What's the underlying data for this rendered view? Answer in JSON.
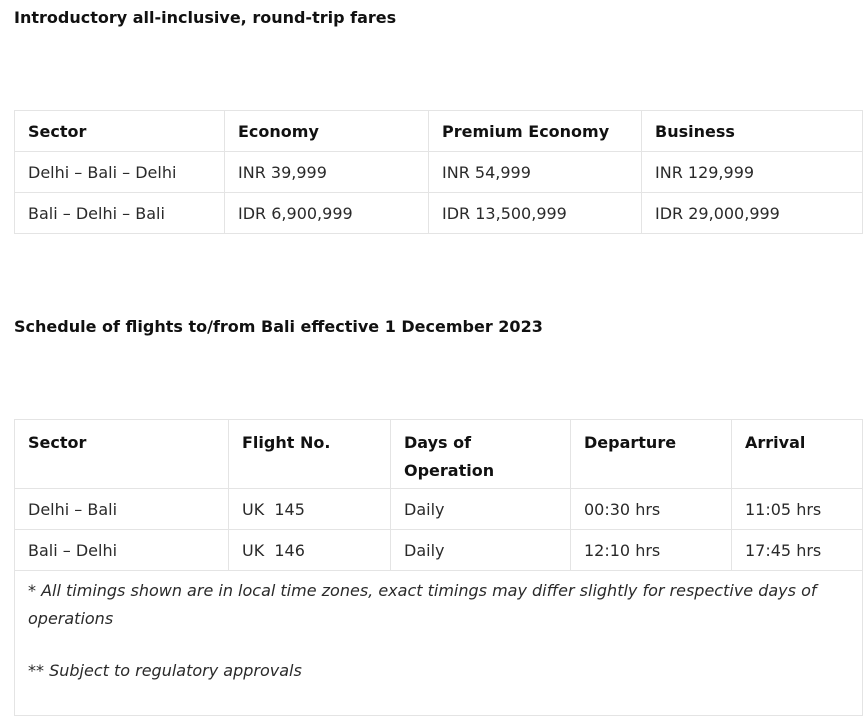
{
  "fares": {
    "heading": "Introductory all-inclusive, round-trip fares",
    "columns": [
      "Sector",
      "Economy",
      "Premium Economy",
      "Business"
    ],
    "rows": [
      [
        "Delhi – Bali – Delhi",
        "INR 39,999",
        "INR 54,999",
        "INR 129,999"
      ],
      [
        "Bali – Delhi – Bali",
        "IDR 6,900,999",
        "IDR 13,500,999",
        "IDR 29,000,999"
      ]
    ]
  },
  "schedule": {
    "heading": "Schedule of flights to/from Bali effective 1 December 2023",
    "columns": [
      "Sector",
      "Flight No.",
      "Days of Operation",
      "Departure",
      "Arrival"
    ],
    "rows": [
      [
        "Delhi – Bali",
        "UK  145",
        "Daily",
        "00:30 hrs",
        "11:05 hrs"
      ],
      [
        "Bali – Delhi",
        "UK  146",
        "Daily",
        "12:10 hrs",
        "17:45 hrs"
      ]
    ],
    "notes": [
      "* All timings shown are in local time zones, exact timings may differ slightly for respective days of operations",
      "** Subject to regulatory approvals"
    ]
  }
}
